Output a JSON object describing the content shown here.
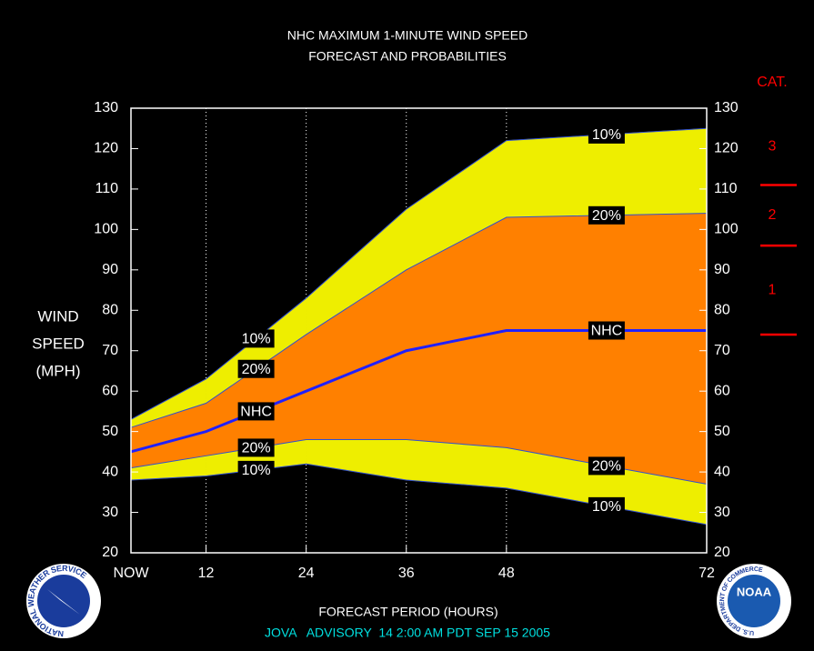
{
  "chart_data": {
    "type": "band",
    "title": "NHC MAXIMUM 1-MINUTE WIND SPEED",
    "subtitle": "FORECAST AND PROBABILITIES",
    "ylabel": [
      "WIND",
      "SPEED",
      "(MPH)"
    ],
    "xlabel": "FORECAST PERIOD (HOURS)",
    "footer": "JOVA   ADVISORY  14 2:00 AM PDT SEP 15 2005",
    "x": [
      3,
      12,
      24,
      36,
      48,
      72
    ],
    "xlim": [
      3,
      72
    ],
    "xticks": [
      {
        "value": 3,
        "label": "NOW"
      },
      12,
      24,
      36,
      48,
      72
    ],
    "ylim": [
      20,
      130
    ],
    "yticks": [
      20,
      30,
      40,
      50,
      60,
      70,
      80,
      90,
      100,
      110,
      120,
      130
    ],
    "grid": true,
    "series": [
      {
        "name": "10%",
        "color": "#eeee00",
        "values": [
          53,
          63,
          83,
          105,
          122,
          125
        ]
      },
      {
        "name": "20%",
        "color": "#ff8000",
        "values": [
          51,
          57,
          74,
          90,
          103,
          104
        ]
      },
      {
        "name": "NHC",
        "color": "#2020ff",
        "values": [
          45,
          50,
          60,
          70,
          75,
          75
        ]
      },
      {
        "name": "20%",
        "color": "#ff8000",
        "values": [
          41,
          44,
          48,
          48,
          46,
          37
        ]
      },
      {
        "name": "10%",
        "color": "#eeee00",
        "values": [
          38,
          39,
          42,
          38,
          36,
          27
        ]
      }
    ],
    "category": {
      "title": "CAT.",
      "color": "#ff0000",
      "thresholds": [
        74,
        96,
        111
      ],
      "labels": [
        "1",
        "2",
        "3"
      ]
    },
    "logos": {
      "left": "NATIONAL WEATHER SERVICE",
      "right": "NOAA",
      "right_ring": "U.S. DEPARTMENT OF COMMERCE"
    }
  }
}
